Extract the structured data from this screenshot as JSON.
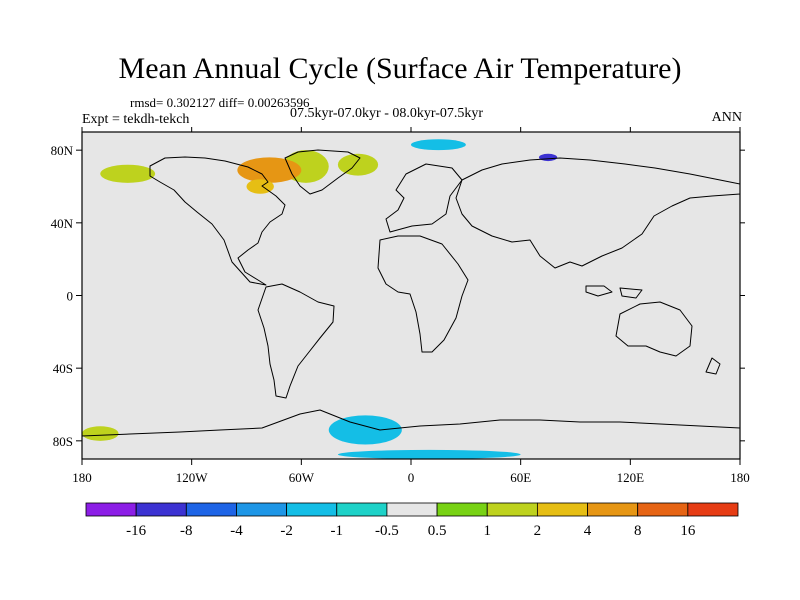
{
  "header": {
    "title": "Mean Annual Cycle (Surface Air Temperature)",
    "stats": "rmsd= 0.302127  diff= 0.00263596",
    "experiment": "Expt = tekdh-tekch",
    "period": "07.5kyr-07.0kyr - 08.0kyr-07.5kyr",
    "season": "ANN"
  },
  "chart_data": {
    "type": "map-contour",
    "title": "Mean Annual Cycle (Surface Air Temperature)",
    "variable": "Surface Air Temperature difference",
    "xlim": [
      -180,
      180
    ],
    "ylim": [
      -90,
      90
    ],
    "x_ticks": [
      {
        "value": -180,
        "label": "180"
      },
      {
        "value": -120,
        "label": "120W"
      },
      {
        "value": -60,
        "label": "60W"
      },
      {
        "value": 0,
        "label": "0"
      },
      {
        "value": 60,
        "label": "60E"
      },
      {
        "value": 120,
        "label": "120E"
      },
      {
        "value": 180,
        "label": "180"
      }
    ],
    "y_ticks": [
      {
        "value": 80,
        "label": "80N"
      },
      {
        "value": 40,
        "label": "40N"
      },
      {
        "value": 0,
        "label": "0"
      },
      {
        "value": -40,
        "label": "40S"
      },
      {
        "value": -80,
        "label": "80S"
      }
    ],
    "colorbar": {
      "labels": [
        "-16",
        "-8",
        "-4",
        "-2",
        "-1",
        "-0.5",
        "0.5",
        "1",
        "2",
        "4",
        "8",
        "16"
      ],
      "colors": [
        "#8c1ee6",
        "#3c32d2",
        "#1e64e6",
        "#1e96e6",
        "#14bee6",
        "#1ed2c8",
        "#e6e6e6",
        "#78d214",
        "#bed21e",
        "#e6be14",
        "#e69614",
        "#e66414",
        "#e63c14"
      ]
    },
    "background_color": "#e6e6e6",
    "anomaly_regions": [
      {
        "name": "Greenland-west",
        "bin": "1",
        "lon": [
          -70,
          -45
        ],
        "lat": [
          62,
          80
        ]
      },
      {
        "name": "Greenland-east",
        "bin": "1",
        "lon": [
          -40,
          -18
        ],
        "lat": [
          66,
          78
        ]
      },
      {
        "name": "Canadian Archipelago",
        "bin": "4",
        "lon": [
          -95,
          -60
        ],
        "lat": [
          62,
          76
        ]
      },
      {
        "name": "Hudson Bay",
        "bin": "2",
        "lon": [
          -90,
          -75
        ],
        "lat": [
          56,
          64
        ]
      },
      {
        "name": "Alaska",
        "bin": "1",
        "lon": [
          -170,
          -140
        ],
        "lat": [
          62,
          72
        ]
      },
      {
        "name": "Barents Sea",
        "bin": "-1",
        "lon": [
          0,
          30
        ],
        "lat": [
          80,
          86
        ]
      },
      {
        "name": "Kara Sea",
        "bin": "-8",
        "lon": [
          70,
          80
        ],
        "lat": [
          74,
          78
        ]
      },
      {
        "name": "Weddell Sea",
        "bin": "-1",
        "lon": [
          -45,
          -5
        ],
        "lat": [
          -82,
          -66
        ]
      },
      {
        "name": "Ross Sea",
        "bin": "1",
        "lon": [
          -180,
          -160
        ],
        "lat": [
          -80,
          -72
        ]
      },
      {
        "name": "Antarctic interior",
        "bin": "-1",
        "lon": [
          -40,
          60
        ],
        "lat": [
          -90,
          -85
        ]
      }
    ]
  }
}
